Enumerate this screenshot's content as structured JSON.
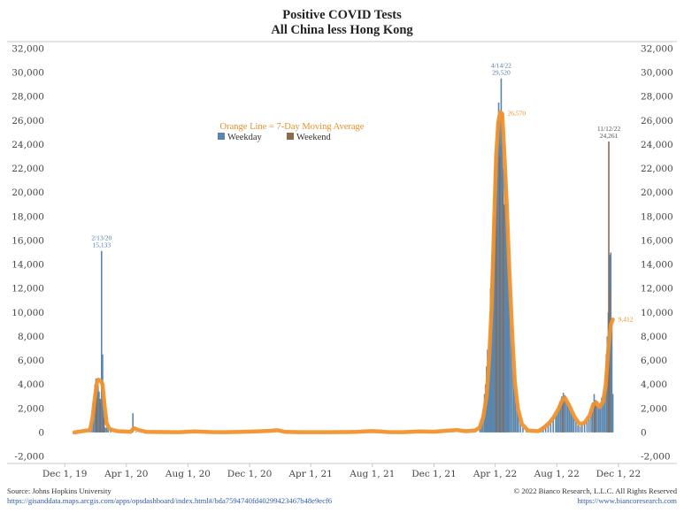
{
  "chart_data": {
    "type": "bar",
    "title": "Positive COVID Tests",
    "subtitle": "All China less Hong Kong",
    "ylim": [
      -2000,
      32000
    ],
    "ytick_step": 2000,
    "x_tick_labels": [
      "Dec 1, 19",
      "Apr 1, 20",
      "Aug 1, 20",
      "Dec 1, 20",
      "Apr 1, 21",
      "Aug 1, 21",
      "Dec 1, 21",
      "Apr 1, 22",
      "Aug 1, 22",
      "Dec 1, 22"
    ],
    "x_tick_dates": [
      "2019-12-01",
      "2020-04-01",
      "2020-08-01",
      "2020-12-01",
      "2021-04-01",
      "2021-08-01",
      "2021-12-01",
      "2022-04-01",
      "2022-08-01",
      "2022-12-01"
    ],
    "x_range": [
      "2019-11-01",
      "2022-12-31"
    ],
    "legend": {
      "title": "Orange Line = 7-Day Moving Average",
      "entries": [
        {
          "label": "Weekday",
          "color": "#5b86ad"
        },
        {
          "label": "Weekend",
          "color": "#8b6a52"
        }
      ]
    },
    "series": [
      {
        "name": "Weekday",
        "color": "#5b86ad",
        "points": [
          [
            "2020-01-20",
            200
          ],
          [
            "2020-01-24",
            800
          ],
          [
            "2020-01-27",
            2600
          ],
          [
            "2020-01-30",
            4000
          ],
          [
            "2020-02-01",
            4500
          ],
          [
            "2020-02-03",
            3800
          ],
          [
            "2020-02-05",
            3900
          ],
          [
            "2020-02-07",
            3400
          ],
          [
            "2020-02-10",
            2500
          ],
          [
            "2020-02-11",
            2000
          ],
          [
            "2020-02-12",
            15133
          ],
          [
            "2020-02-14",
            6500
          ],
          [
            "2020-02-15",
            2600
          ],
          [
            "2020-02-17",
            1900
          ],
          [
            "2020-02-19",
            400
          ],
          [
            "2020-02-22",
            400
          ],
          [
            "2020-02-25",
            400
          ],
          [
            "2020-03-01",
            300
          ],
          [
            "2020-03-20",
            100
          ],
          [
            "2020-04-14",
            1600
          ],
          [
            "2020-04-20",
            50
          ],
          [
            "2022-03-02",
            600
          ],
          [
            "2022-03-05",
            1200
          ],
          [
            "2022-03-08",
            1900
          ],
          [
            "2022-03-11",
            3200
          ],
          [
            "2022-03-13",
            4000
          ],
          [
            "2022-03-15",
            5500
          ],
          [
            "2022-03-17",
            6900
          ],
          [
            "2022-03-19",
            5400
          ],
          [
            "2022-03-21",
            8000
          ],
          [
            "2022-03-23",
            12000
          ],
          [
            "2022-03-25",
            13500
          ],
          [
            "2022-03-27",
            15000
          ],
          [
            "2022-03-29",
            18000
          ],
          [
            "2022-03-31",
            22000
          ],
          [
            "2022-04-02",
            23500
          ],
          [
            "2022-04-04",
            20000
          ],
          [
            "2022-04-06",
            26000
          ],
          [
            "2022-04-08",
            27500
          ],
          [
            "2022-04-10",
            26000
          ],
          [
            "2022-04-12",
            24000
          ],
          [
            "2022-04-13",
            29520
          ],
          [
            "2022-04-15",
            26500
          ],
          [
            "2022-04-17",
            22000
          ],
          [
            "2022-04-19",
            19000
          ],
          [
            "2022-04-21",
            21500
          ],
          [
            "2022-04-23",
            19000
          ],
          [
            "2022-04-25",
            17000
          ],
          [
            "2022-04-27",
            14000
          ],
          [
            "2022-04-29",
            12000
          ],
          [
            "2022-05-02",
            9000
          ],
          [
            "2022-05-05",
            7000
          ],
          [
            "2022-05-08",
            5000
          ],
          [
            "2022-05-11",
            3500
          ],
          [
            "2022-05-14",
            2500
          ],
          [
            "2022-05-17",
            1500
          ],
          [
            "2022-05-21",
            800
          ],
          [
            "2022-05-26",
            400
          ],
          [
            "2022-06-02",
            200
          ],
          [
            "2022-06-15",
            150
          ],
          [
            "2022-07-01",
            250
          ],
          [
            "2022-07-05",
            500
          ],
          [
            "2022-07-10",
            700
          ],
          [
            "2022-07-15",
            900
          ],
          [
            "2022-07-20",
            1000
          ],
          [
            "2022-07-25",
            1200
          ],
          [
            "2022-07-30",
            1400
          ],
          [
            "2022-08-02",
            1800
          ],
          [
            "2022-08-05",
            2200
          ],
          [
            "2022-08-08",
            2600
          ],
          [
            "2022-08-11",
            3000
          ],
          [
            "2022-08-14",
            3300
          ],
          [
            "2022-08-17",
            3100
          ],
          [
            "2022-08-20",
            2600
          ],
          [
            "2022-08-23",
            2400
          ],
          [
            "2022-08-26",
            2000
          ],
          [
            "2022-08-29",
            1800
          ],
          [
            "2022-09-01",
            1500
          ],
          [
            "2022-09-04",
            1200
          ],
          [
            "2022-09-08",
            900
          ],
          [
            "2022-09-12",
            600
          ],
          [
            "2022-09-16",
            500
          ],
          [
            "2022-09-20",
            600
          ],
          [
            "2022-09-25",
            800
          ],
          [
            "2022-09-30",
            1100
          ],
          [
            "2022-10-04",
            1400
          ],
          [
            "2022-10-08",
            1800
          ],
          [
            "2022-10-11",
            2500
          ],
          [
            "2022-10-14",
            3200
          ],
          [
            "2022-10-17",
            2700
          ],
          [
            "2022-10-20",
            2200
          ],
          [
            "2022-10-23",
            2000
          ],
          [
            "2022-10-26",
            2400
          ],
          [
            "2022-10-29",
            2900
          ],
          [
            "2022-11-01",
            3100
          ],
          [
            "2022-11-04",
            3500
          ],
          [
            "2022-11-07",
            6500
          ],
          [
            "2022-11-09",
            8000
          ],
          [
            "2022-11-10",
            7400
          ],
          [
            "2022-11-11",
            10000
          ],
          [
            "2022-11-14",
            14800
          ],
          [
            "2022-11-16",
            15000
          ],
          [
            "2022-11-18",
            9000
          ],
          [
            "2022-11-20",
            3200
          ]
        ]
      },
      {
        "name": "Weekend",
        "color": "#8b6a52",
        "points": [
          [
            "2020-02-02",
            3000
          ],
          [
            "2020-02-09",
            2800
          ],
          [
            "2020-02-16",
            1200
          ],
          [
            "2022-04-03",
            21000
          ],
          [
            "2022-04-10",
            23000
          ],
          [
            "2022-04-17",
            20000
          ],
          [
            "2022-08-13",
            2900
          ],
          [
            "2022-10-15",
            2600
          ],
          [
            "2022-11-12",
            24261
          ],
          [
            "2022-11-13",
            12000
          ]
        ]
      },
      {
        "name": "7-Day Moving Average",
        "type": "line",
        "color": "#f0922e",
        "points": [
          [
            "2019-12-20",
            0
          ],
          [
            "2020-01-20",
            200
          ],
          [
            "2020-01-25",
            1200
          ],
          [
            "2020-01-30",
            3000
          ],
          [
            "2020-02-03",
            4200
          ],
          [
            "2020-02-06",
            4400
          ],
          [
            "2020-02-10",
            4300
          ],
          [
            "2020-02-14",
            4000
          ],
          [
            "2020-02-18",
            2200
          ],
          [
            "2020-02-22",
            800
          ],
          [
            "2020-02-27",
            300
          ],
          [
            "2020-03-05",
            200
          ],
          [
            "2020-03-15",
            100
          ],
          [
            "2020-04-10",
            60
          ],
          [
            "2020-04-16",
            350
          ],
          [
            "2020-04-25",
            200
          ],
          [
            "2020-05-10",
            50
          ],
          [
            "2020-06-15",
            30
          ],
          [
            "2020-07-15",
            20
          ],
          [
            "2020-08-15",
            80
          ],
          [
            "2020-09-15",
            30
          ],
          [
            "2020-10-15",
            20
          ],
          [
            "2020-11-15",
            40
          ],
          [
            "2020-12-15",
            90
          ],
          [
            "2021-01-10",
            130
          ],
          [
            "2021-01-25",
            180
          ],
          [
            "2021-02-10",
            40
          ],
          [
            "2021-03-10",
            20
          ],
          [
            "2021-04-10",
            20
          ],
          [
            "2021-05-10",
            20
          ],
          [
            "2021-06-10",
            30
          ],
          [
            "2021-07-01",
            40
          ],
          [
            "2021-07-30",
            110
          ],
          [
            "2021-08-15",
            80
          ],
          [
            "2021-09-01",
            30
          ],
          [
            "2021-10-01",
            20
          ],
          [
            "2021-11-01",
            80
          ],
          [
            "2021-12-01",
            60
          ],
          [
            "2021-12-25",
            140
          ],
          [
            "2022-01-15",
            200
          ],
          [
            "2022-02-01",
            100
          ],
          [
            "2022-02-20",
            150
          ],
          [
            "2022-03-01",
            400
          ],
          [
            "2022-03-08",
            1200
          ],
          [
            "2022-03-15",
            3000
          ],
          [
            "2022-03-20",
            6000
          ],
          [
            "2022-03-25",
            10500
          ],
          [
            "2022-03-30",
            17500
          ],
          [
            "2022-04-03",
            23000
          ],
          [
            "2022-04-07",
            25800
          ],
          [
            "2022-04-11",
            26700
          ],
          [
            "2022-04-15",
            26570
          ],
          [
            "2022-04-19",
            23500
          ],
          [
            "2022-04-24",
            19000
          ],
          [
            "2022-04-29",
            13500
          ],
          [
            "2022-05-05",
            8000
          ],
          [
            "2022-05-10",
            4200
          ],
          [
            "2022-05-16",
            2000
          ],
          [
            "2022-05-24",
            700
          ],
          [
            "2022-06-05",
            150
          ],
          [
            "2022-06-25",
            100
          ],
          [
            "2022-07-05",
            350
          ],
          [
            "2022-07-15",
            700
          ],
          [
            "2022-07-25",
            1200
          ],
          [
            "2022-08-05",
            2000
          ],
          [
            "2022-08-12",
            2700
          ],
          [
            "2022-08-17",
            2900
          ],
          [
            "2022-08-25",
            2300
          ],
          [
            "2022-09-05",
            1300
          ],
          [
            "2022-09-15",
            700
          ],
          [
            "2022-09-25",
            800
          ],
          [
            "2022-10-05",
            1400
          ],
          [
            "2022-10-12",
            2300
          ],
          [
            "2022-10-18",
            2500
          ],
          [
            "2022-10-25",
            2100
          ],
          [
            "2022-11-01",
            2600
          ],
          [
            "2022-11-06",
            4000
          ],
          [
            "2022-11-11",
            7000
          ],
          [
            "2022-11-16",
            9000
          ],
          [
            "2022-11-20",
            9412
          ]
        ]
      }
    ],
    "annotations": [
      {
        "date": "2020-02-12",
        "value": 15133,
        "lines": [
          "2/13/20",
          "15,133"
        ],
        "color": "blue"
      },
      {
        "date": "2022-04-13",
        "value": 29520,
        "lines": [
          "4/14/22",
          "29,520"
        ],
        "color": "blue"
      },
      {
        "date": "2022-04-15",
        "value": 26570,
        "lines": [
          "26,570"
        ],
        "color": "orange"
      },
      {
        "date": "2022-11-12",
        "value": 24261,
        "lines": [
          "11/12/22",
          "24,261"
        ],
        "color": "dark"
      },
      {
        "date": "2022-11-20",
        "value": 9412,
        "lines": [
          "9,412"
        ],
        "color": "orange"
      }
    ]
  },
  "footer": {
    "source": "Source: Johns Hopkins University",
    "source_url": "https://gisanddata.maps.arcgis.com/apps/opsdashboard/index.html#/bda7594740fd40299423467b48e9ecf6",
    "copyright": "© 2022 Bianco Research, L.L.C. All Rights Reserved",
    "copyright_url": "https://www.biancoresearch.com"
  }
}
